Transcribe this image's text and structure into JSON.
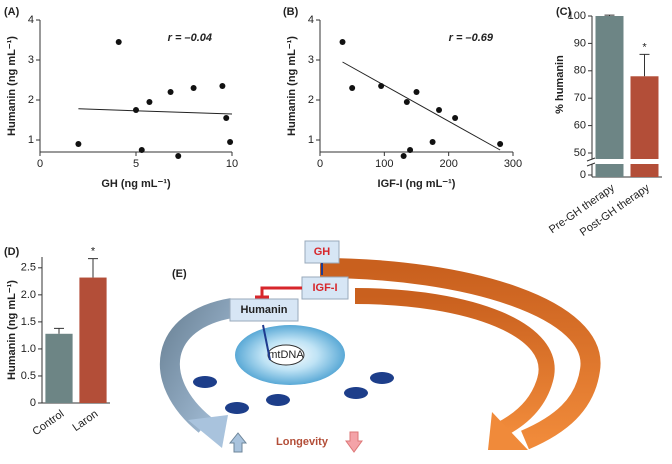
{
  "chart_data": [
    {
      "type": "scatter",
      "panel": "(A)",
      "xlabel": "GH (ng mL⁻¹)",
      "ylabel": "Humanin (ng mL⁻¹)",
      "annotation": "r = –0.04",
      "x": [
        2,
        4.1,
        5,
        5.3,
        5.7,
        6.8,
        7.2,
        8,
        9.5,
        9.7,
        9.9
      ],
      "y": [
        0.9,
        3.45,
        1.75,
        0.75,
        1.95,
        2.2,
        0.6,
        2.3,
        2.35,
        1.55,
        0.95
      ],
      "fit_line": {
        "x": [
          2,
          10
        ],
        "y": [
          1.78,
          1.65
        ]
      },
      "color": "#111111",
      "xlim": [
        0,
        10
      ],
      "xticks": [
        0,
        5,
        10
      ],
      "ylim": [
        0.7,
        4
      ],
      "yticks": [
        1,
        2,
        3,
        4
      ]
    },
    {
      "type": "scatter",
      "panel": "(B)",
      "xlabel": "IGF-I (ng mL⁻¹)",
      "ylabel": "Humanin (ng mL⁻¹)",
      "annotation": "r = –0.69",
      "x": [
        35,
        50,
        95,
        130,
        135,
        140,
        150,
        175,
        185,
        210,
        280
      ],
      "y": [
        3.45,
        2.3,
        2.35,
        0.6,
        1.95,
        0.75,
        2.2,
        0.95,
        1.75,
        1.55,
        0.9
      ],
      "fit_line": {
        "x": [
          35,
          280
        ],
        "y": [
          2.95,
          0.75
        ]
      },
      "color": "#111111",
      "xlim": [
        0,
        300
      ],
      "xticks": [
        0,
        100,
        200,
        300
      ],
      "ylim": [
        0.7,
        4
      ],
      "yticks": [
        1,
        2,
        3,
        4
      ]
    },
    {
      "type": "bar",
      "panel": "(C)",
      "ylabel": "% humanin",
      "categories": [
        "Pre-GH therapy",
        "Post-GH therapy"
      ],
      "values": [
        100,
        78
      ],
      "errors": [
        0.3,
        8
      ],
      "significance": [
        null,
        "*"
      ],
      "colors": [
        "#6d8585",
        "#b34e38"
      ],
      "ylim": [
        50,
        100
      ],
      "yticks": [
        50,
        60,
        70,
        80,
        90,
        100
      ],
      "below_break_tick": 0
    },
    {
      "type": "bar",
      "panel": "(D)",
      "ylabel": "Humanin (ng mL⁻¹)",
      "categories": [
        "Control",
        "Laron"
      ],
      "values": [
        1.28,
        2.32
      ],
      "errors": [
        0.1,
        0.35
      ],
      "significance": [
        null,
        "*"
      ],
      "colors": [
        "#6d8585",
        "#b34e38"
      ],
      "ylim": [
        0,
        2.7
      ],
      "yticks": [
        0,
        0.5,
        {
          "value": 1,
          "label": "1.0"
        },
        1.5,
        {
          "value": 2,
          "label": "2.0"
        },
        2.5
      ]
    }
  ],
  "diagram": {
    "panel": "(E)",
    "gh": "GH",
    "igf": "IGF-I",
    "humanin": "Humanin",
    "mtdna": "mtDNA",
    "longevity": "Longevity"
  }
}
